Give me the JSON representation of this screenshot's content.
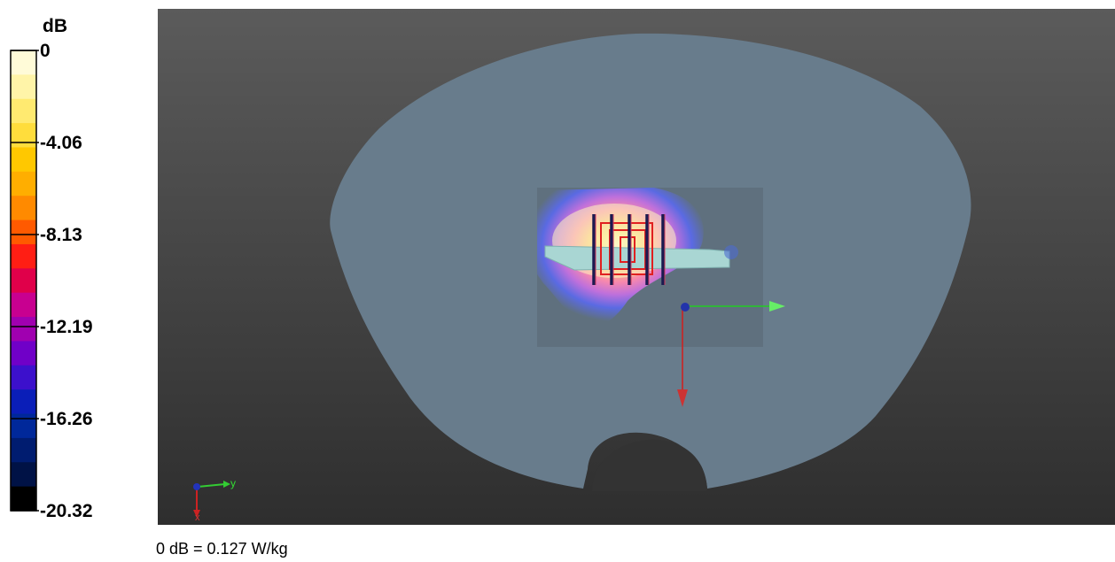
{
  "colorbar": {
    "unit": "dB",
    "ticks": [
      "0",
      "-4.06",
      "-8.13",
      "-12.19",
      "-16.26",
      "-20.32"
    ],
    "colors": [
      "#fffbd8",
      "#fff4a8",
      "#ffea70",
      "#ffdd3c",
      "#ffc800",
      "#ffae00",
      "#ff8a00",
      "#ff5a00",
      "#ff1e14",
      "#e0004a",
      "#c80090",
      "#a000b0",
      "#7000c8",
      "#3c10cc",
      "#0a1eb8",
      "#00289a",
      "#001c70",
      "#001246",
      "#000000"
    ],
    "range": [
      -20.32,
      0
    ]
  },
  "viewer": {
    "background_top": "#5b5b5b",
    "background_bottom": "#2e2e2e",
    "phantom_color": "#687c8c",
    "axes_label_y": "y",
    "axes_label_x": "x"
  },
  "reference_label": "0 dB = 0.127 W/kg"
}
